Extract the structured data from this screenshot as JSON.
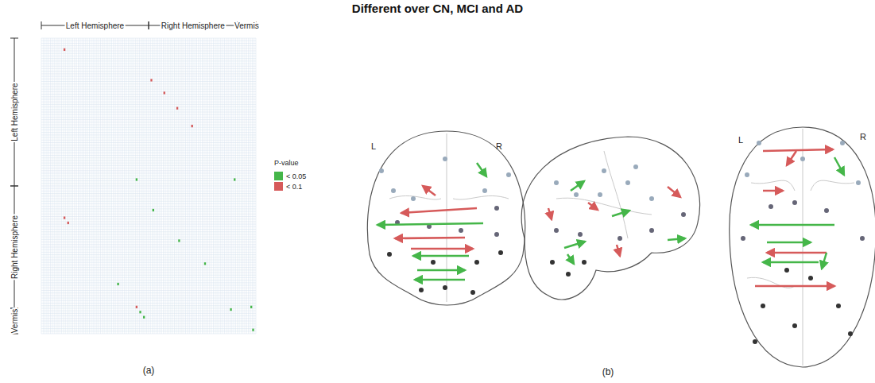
{
  "title": "Different over CN, MCI and AD",
  "chart_data": {
    "type": "heatmap",
    "panel_label": "(a)",
    "size": 116,
    "xlim": [
      0,
      116
    ],
    "ylim": [
      0,
      116
    ],
    "tick_labels": false,
    "grid": true,
    "legend": "right",
    "regions": [
      {
        "label": "Left Hemisphere",
        "start": 0,
        "end": 58
      },
      {
        "label": "Right Hemisphere",
        "start": 58,
        "end": 106
      },
      {
        "label": "Vermis",
        "start": 106,
        "end": 116
      }
    ],
    "color_legend": {
      "title": "P-value",
      "items": [
        {
          "label": "< 0.05",
          "value": 0.05,
          "color": "#45b649"
        },
        {
          "label": "< 0.1",
          "value": 0.1,
          "color": "#d65a5a"
        }
      ]
    },
    "cells": [
      {
        "row": 4,
        "col": 12,
        "p": 0.1
      },
      {
        "row": 16,
        "col": 59,
        "p": 0.1
      },
      {
        "row": 21,
        "col": 66,
        "p": 0.1
      },
      {
        "row": 27,
        "col": 73,
        "p": 0.1
      },
      {
        "row": 34,
        "col": 81,
        "p": 0.1
      },
      {
        "row": 55,
        "col": 51,
        "p": 0.05
      },
      {
        "row": 55,
        "col": 104,
        "p": 0.05
      },
      {
        "row": 67,
        "col": 60,
        "p": 0.05
      },
      {
        "row": 70,
        "col": 12,
        "p": 0.1
      },
      {
        "row": 72,
        "col": 14,
        "p": 0.1
      },
      {
        "row": 79,
        "col": 74,
        "p": 0.05
      },
      {
        "row": 88,
        "col": 88,
        "p": 0.05
      },
      {
        "row": 96,
        "col": 41,
        "p": 0.05
      },
      {
        "row": 105,
        "col": 51,
        "p": 0.1
      },
      {
        "row": 107,
        "col": 53,
        "p": 0.05
      },
      {
        "row": 109,
        "col": 55,
        "p": 0.05
      },
      {
        "row": 106,
        "col": 102,
        "p": 0.05
      },
      {
        "row": 105,
        "col": 113,
        "p": 0.05
      },
      {
        "row": 114,
        "col": 114,
        "p": 0.05
      }
    ]
  },
  "diagram": {
    "panel_label": "(b)",
    "views": [
      {
        "labels": [
          "L",
          "R"
        ],
        "edges": [
          0.05,
          0.1,
          0.1,
          0.05,
          0.1,
          0.1,
          0.05,
          0.05,
          0.05
        ]
      },
      {
        "labels": [],
        "edges": [
          0.05,
          0.1,
          0.1,
          0.05,
          0.1,
          0.05,
          0.05,
          0.05,
          0.1
        ]
      },
      {
        "labels": [
          "L",
          "R"
        ],
        "edges": [
          0.1,
          0.1,
          0.05,
          0.1,
          0.05,
          0.05,
          0.1,
          0.05,
          0.05,
          0.1
        ]
      }
    ]
  }
}
